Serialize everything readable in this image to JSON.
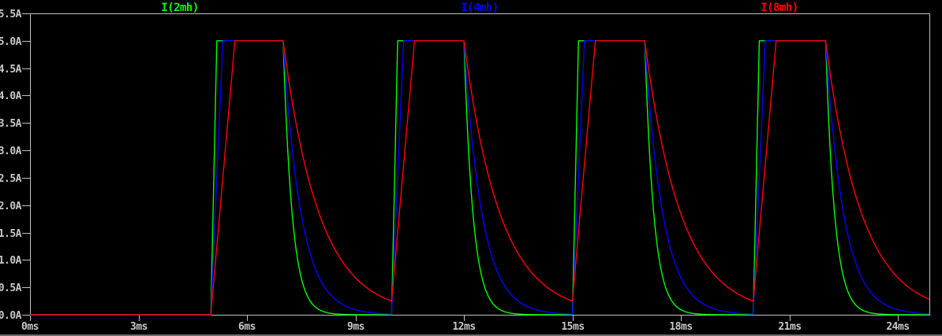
{
  "app": {
    "name": "waveform-viewer-pane"
  },
  "colors": {
    "background": "#000000",
    "plot_border": "#c0c0c0",
    "axis_text": "#c8c8c8",
    "bottom_edge": "#6e6e6e"
  },
  "chart_data": {
    "type": "line",
    "title": "",
    "grid": false,
    "legend_position": "top",
    "x_axis": {
      "unit": "ms",
      "min_ms": 0,
      "max_ms": 24.87,
      "tick_step_ms": 3,
      "tick_values_ms": [
        0,
        3,
        6,
        9,
        12,
        15,
        18,
        21,
        24
      ],
      "tick_labels": [
        "0ms",
        "3ms",
        "6ms",
        "9ms",
        "12ms",
        "15ms",
        "18ms",
        "21ms",
        "24ms"
      ]
    },
    "y_axis": {
      "unit": "A",
      "min_A": 0,
      "max_A": 5.5,
      "tick_step_A": 0.5,
      "tick_values_A": [
        0,
        0.5,
        1.0,
        1.5,
        2.0,
        2.5,
        3.0,
        3.5,
        4.0,
        4.5,
        5.0,
        5.5
      ],
      "tick_labels": [
        "0.0A",
        "0.5A",
        "1.0A",
        "1.5A",
        "2.0A",
        "2.5A",
        "3.0A",
        "3.5A",
        "4.0A",
        "4.5A",
        "5.0A",
        "5.5A"
      ]
    },
    "excitation": {
      "amplitude_A": 5.0,
      "pulse_on_ms": [
        5,
        10,
        15,
        20
      ],
      "pulse_off_ms": [
        7,
        12,
        17,
        22
      ]
    },
    "series": [
      {
        "name": "I(2mh)",
        "color": "#00ff00",
        "inductance_mH": 2,
        "rise_slope_A_per_ms": 30,
        "decay_tau_ms": 0.25,
        "peak_A": 5.0
      },
      {
        "name": "I(4mh)",
        "color": "#0000ff",
        "inductance_mH": 4,
        "rise_slope_A_per_ms": 15,
        "decay_tau_ms": 0.5,
        "peak_A": 5.0
      },
      {
        "name": "I(8mh)",
        "color": "#ff0000",
        "inductance_mH": 8,
        "rise_slope_A_per_ms": 7.5,
        "decay_tau_ms": 1.0,
        "peak_A": 5.0
      }
    ]
  }
}
